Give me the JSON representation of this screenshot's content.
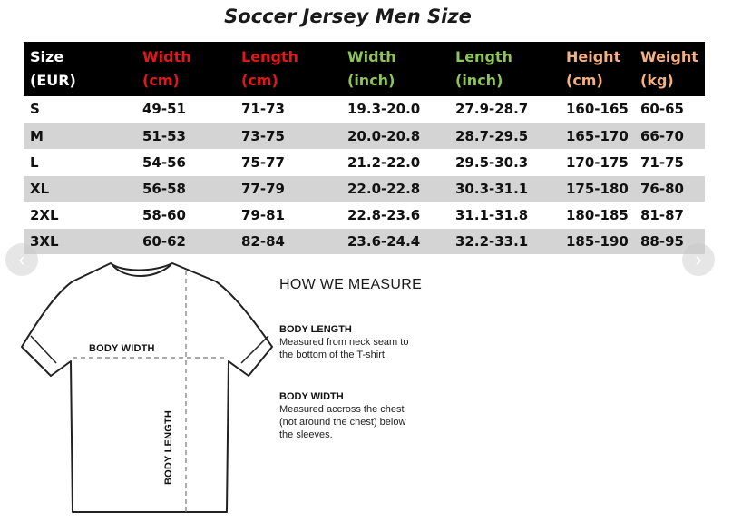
{
  "title": "Soccer Jersey Men Size",
  "colors": {
    "white_header": "#ffffff",
    "red_header": "#e01818",
    "green_header": "#8fc45a",
    "orange_header": "#f3b183"
  },
  "table": {
    "headers": [
      {
        "line1": "Size",
        "line2": "(EUR)",
        "color": "#ffffff"
      },
      {
        "line1": "Width",
        "line2": "(cm)",
        "color": "#e01818"
      },
      {
        "line1": "Length",
        "line2": "(cm)",
        "color": "#e01818"
      },
      {
        "line1": "Width",
        "line2": "(inch)",
        "color": "#8fc45a"
      },
      {
        "line1": "Length",
        "line2": "(inch)",
        "color": "#8fc45a"
      },
      {
        "line1": "Height",
        "line2": "(cm)",
        "color": "#f3b183"
      },
      {
        "line1": "Weight",
        "line2": "(kg)",
        "color": "#f3b183"
      }
    ],
    "rows": [
      [
        "S",
        "49-51",
        "71-73",
        "19.3-20.0",
        "27.9-28.7",
        "160-165",
        "60-65"
      ],
      [
        "M",
        "51-53",
        "73-75",
        "20.0-20.8",
        "28.7-29.5",
        "165-170",
        "66-70"
      ],
      [
        "L",
        "54-56",
        "75-77",
        "21.2-22.0",
        "29.5-30.3",
        "170-175",
        "71-75"
      ],
      [
        "XL",
        "56-58",
        "77-79",
        "22.0-22.8",
        "30.3-31.1",
        "175-180",
        "76-80"
      ],
      [
        "2XL",
        "58-60",
        "79-81",
        "22.8-23.6",
        "31.1-31.8",
        "180-185",
        "81-87"
      ],
      [
        "3XL",
        "60-62",
        "82-84",
        "23.6-24.4",
        "32.2-33.1",
        "185-190",
        "88-95"
      ]
    ]
  },
  "diagram": {
    "body_width_label": "BODY WIDTH",
    "body_length_label": "BODY LENGTH"
  },
  "measure": {
    "heading": "HOW WE MEASURE",
    "body_length": {
      "title": "BODY LENGTH",
      "text": "Measured from neck seam to\nthe bottom of the T-shirt."
    },
    "body_width": {
      "title": "BODY WIDTH",
      "text": "Measured accross the chest\n(not around the chest) below\nthe sleeves."
    }
  },
  "nav": {
    "prev_icon": "chevron-left-icon",
    "next_icon": "chevron-right-icon"
  }
}
